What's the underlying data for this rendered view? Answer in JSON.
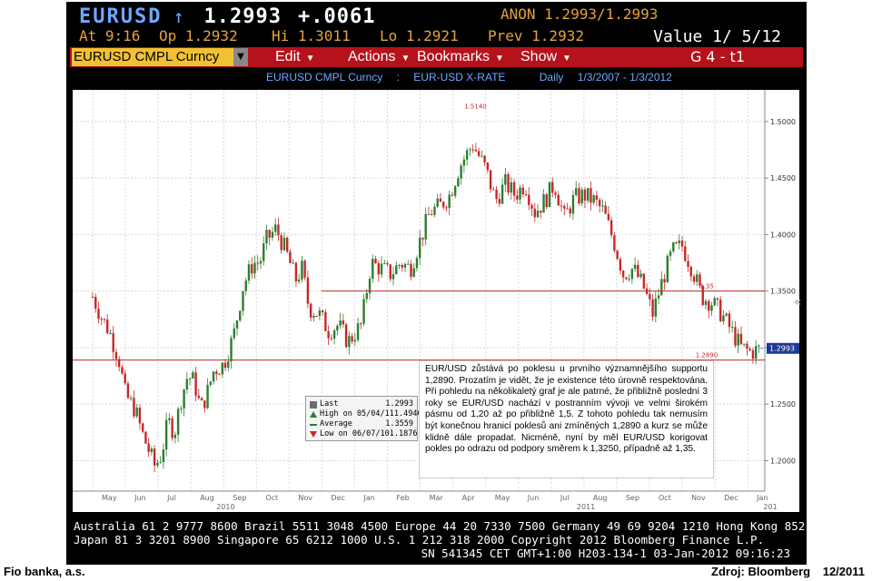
{
  "header": {
    "ticker": "EURUSD",
    "arrow": "↑",
    "last_price": "1.2993",
    "change": "+.0061",
    "bid_ask": "ANON 1.2993/1.2993",
    "time": "At  9:16",
    "open": "Op 1.2932",
    "high": "Hi 1.3011",
    "low": "Lo 1.2921",
    "prev": "Prev 1.2932",
    "value_label": "Value  1/ 5/12"
  },
  "menubar": {
    "security": "EURUSD CMPL Curncy",
    "drop_icon": "▼",
    "items": [
      "Edit",
      "Actions",
      "Bookmarks",
      "Show"
    ],
    "page": "G 4 - t1"
  },
  "infobar": {
    "security": "EURUSD CMPL Curncy",
    "separator": ":",
    "desc": "EUR-USD X-RATE",
    "period": "Daily",
    "range": "1/3/2007 - 1/3/2012"
  },
  "legend": {
    "rows": [
      {
        "label": "Last",
        "value": "1.2993",
        "color": "#6c6c6c"
      },
      {
        "label": "High on 05/04/11",
        "value": "1.4940",
        "color": "#2e7d32"
      },
      {
        "label": "Average",
        "value": "1.3559",
        "color": "#2e7d32"
      },
      {
        "label": "Low on 06/07/10",
        "value": "1.1876",
        "color": "#c62828"
      }
    ]
  },
  "annotation": "EUR/USD zůstává po poklesu u prvního významnějšího supportu 1,2890. Prozatím je vidět, že je existence této úrovně respektována. Při pohledu na několikaletý graf je ale patrné, že přibližně poslední 3 roky se EUR/USD nachází v postranním vývoji ve velmi širokém pásmu od 1,20 až po přibližně 1,5. Z tohoto pohledu tak nemusím být konečnou hranicí poklesů ani zmíněných 1,2890 a kurz se může klidně dále propadat. Nicméně, nyní by měl EUR/USD korigovat pokles po odrazu od podpory směrem k 1,3250, případně až 1,35.",
  "footer": {
    "line1": "Australia 61 2 9777 8600 Brazil 5511 3048 4500 Europe 44 20 7330 7500 Germany 49 69 9204 1210 Hong Kong 852 2977 6000",
    "line2": "Japan 81 3 3201 8900       Singapore 65 6212 1000       U.S. 1 212 318 2000       Copyright 2012 Bloomberg Finance L.P.",
    "line3": "SN 541345 CET  GMT+1:00 H203-134-1 03-Jan-2012 09:16:23"
  },
  "page_footer": {
    "left": "Fio banka, a.s.",
    "source": "Zdroj: Bloomberg",
    "date": "12/2011"
  },
  "side_chevron": "«",
  "chart_data": {
    "type": "candlestick",
    "y_ticks": [
      1.5,
      1.45,
      1.4,
      1.35,
      1.3,
      1.25,
      1.2
    ],
    "y_tick_labels": [
      "1.5000",
      "1.4500",
      "1.4000",
      "1.3500",
      "1.3000",
      "1.2500",
      "1.2000"
    ],
    "ylim": [
      1.173,
      1.528
    ],
    "x_labels": [
      "May",
      "Jun",
      "Jul",
      "Aug",
      "Sep",
      "Oct",
      "Nov",
      "Dec",
      "Jan",
      "Feb",
      "Mar",
      "Apr",
      "May",
      "Jun",
      "Jul",
      "Aug",
      "Sep",
      "Oct",
      "Nov",
      "Dec",
      "Jan"
    ],
    "year_labels": [
      {
        "label": "2010",
        "index": 3.5
      },
      {
        "label": "2011",
        "index": 14.5
      },
      {
        "label": "201",
        "index": 20.2
      }
    ],
    "last_value": 1.2993,
    "last_label": "1.2993",
    "ref_lines": [
      {
        "value": 1.35,
        "label": "1.35",
        "start_index": 7.6
      },
      {
        "value": 1.289,
        "label": "1.2890",
        "start_index": 0
      }
    ],
    "top_label": {
      "value": 1.514,
      "label": "1.5140"
    },
    "close_path": [
      {
        "t": 0.0,
        "v": 1.345
      },
      {
        "t": 0.3,
        "v": 1.325
      },
      {
        "t": 0.5,
        "v": 1.315
      },
      {
        "t": 0.8,
        "v": 1.29
      },
      {
        "t": 1.0,
        "v": 1.258
      },
      {
        "t": 1.3,
        "v": 1.245
      },
      {
        "t": 1.5,
        "v": 1.225
      },
      {
        "t": 1.7,
        "v": 1.21
      },
      {
        "t": 1.9,
        "v": 1.195
      },
      {
        "t": 2.1,
        "v": 1.205
      },
      {
        "t": 2.3,
        "v": 1.235
      },
      {
        "t": 2.5,
        "v": 1.225
      },
      {
        "t": 2.7,
        "v": 1.255
      },
      {
        "t": 2.9,
        "v": 1.275
      },
      {
        "t": 3.1,
        "v": 1.27
      },
      {
        "t": 3.3,
        "v": 1.245
      },
      {
        "t": 3.5,
        "v": 1.26
      },
      {
        "t": 3.7,
        "v": 1.28
      },
      {
        "t": 4.0,
        "v": 1.285
      },
      {
        "t": 4.3,
        "v": 1.31
      },
      {
        "t": 4.6,
        "v": 1.355
      },
      {
        "t": 4.9,
        "v": 1.375
      },
      {
        "t": 5.1,
        "v": 1.375
      },
      {
        "t": 5.3,
        "v": 1.395
      },
      {
        "t": 5.6,
        "v": 1.405
      },
      {
        "t": 5.9,
        "v": 1.385
      },
      {
        "t": 6.2,
        "v": 1.36
      },
      {
        "t": 6.4,
        "v": 1.37
      },
      {
        "t": 6.6,
        "v": 1.335
      },
      {
        "t": 6.9,
        "v": 1.33
      },
      {
        "t": 7.2,
        "v": 1.315
      },
      {
        "t": 7.5,
        "v": 1.32
      },
      {
        "t": 7.8,
        "v": 1.305
      },
      {
        "t": 8.2,
        "v": 1.32
      },
      {
        "t": 8.5,
        "v": 1.375
      },
      {
        "t": 8.8,
        "v": 1.37
      },
      {
        "t": 9.1,
        "v": 1.365
      },
      {
        "t": 9.4,
        "v": 1.375
      },
      {
        "t": 9.7,
        "v": 1.37
      },
      {
        "t": 10.0,
        "v": 1.395
      },
      {
        "t": 10.3,
        "v": 1.42
      },
      {
        "t": 10.6,
        "v": 1.425
      },
      {
        "t": 10.9,
        "v": 1.435
      },
      {
        "t": 11.2,
        "v": 1.46
      },
      {
        "t": 11.6,
        "v": 1.48
      },
      {
        "t": 12.0,
        "v": 1.458
      },
      {
        "t": 12.3,
        "v": 1.43
      },
      {
        "t": 12.6,
        "v": 1.445
      },
      {
        "t": 12.9,
        "v": 1.435
      },
      {
        "t": 13.2,
        "v": 1.445
      },
      {
        "t": 13.5,
        "v": 1.42
      },
      {
        "t": 13.8,
        "v": 1.43
      },
      {
        "t": 14.1,
        "v": 1.445
      },
      {
        "t": 14.4,
        "v": 1.415
      },
      {
        "t": 14.7,
        "v": 1.432
      },
      {
        "t": 15.0,
        "v": 1.435
      },
      {
        "t": 15.3,
        "v": 1.43
      },
      {
        "t": 15.6,
        "v": 1.42
      },
      {
        "t": 15.9,
        "v": 1.395
      },
      {
        "t": 16.2,
        "v": 1.365
      },
      {
        "t": 16.5,
        "v": 1.37
      },
      {
        "t": 16.8,
        "v": 1.355
      },
      {
        "t": 17.1,
        "v": 1.33
      },
      {
        "t": 17.4,
        "v": 1.36
      },
      {
        "t": 17.7,
        "v": 1.385
      },
      {
        "t": 18.0,
        "v": 1.39
      },
      {
        "t": 18.3,
        "v": 1.37
      },
      {
        "t": 18.6,
        "v": 1.345
      },
      {
        "t": 18.9,
        "v": 1.34
      },
      {
        "t": 19.2,
        "v": 1.33
      },
      {
        "t": 19.5,
        "v": 1.315
      },
      {
        "t": 19.8,
        "v": 1.3
      },
      {
        "t": 20.1,
        "v": 1.296
      },
      {
        "t": 20.4,
        "v": 1.299
      }
    ],
    "colors": {
      "up": "#2e7d32",
      "down": "#c62828",
      "ref_line": "#c62828",
      "last": "#1f3a93"
    }
  }
}
